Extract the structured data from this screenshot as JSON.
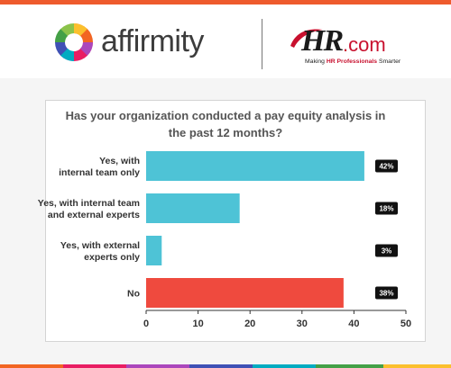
{
  "header": {
    "affirmity_brand": "affirmity",
    "hr_brand": "HR",
    "hr_domain": ".com",
    "hr_tagline_start": "Making ",
    "hr_tagline_highlight": "HR Professionals",
    "hr_tagline_end": " Smarter"
  },
  "colors": {
    "top_bar": "#ee5b2d",
    "bar_primary": "#4ec3d6",
    "bar_highlight": "#ef4a3e",
    "value_badge": "#111111"
  },
  "chart_data": {
    "type": "bar",
    "orientation": "horizontal",
    "title_lines": [
      "Has your organization conducted a pay equity analysis in",
      "the past 12 months?"
    ],
    "categories": [
      [
        "Yes, with",
        "internal team only"
      ],
      [
        "Yes, with internal team",
        "and external experts"
      ],
      [
        "Yes, with external",
        "experts only"
      ],
      [
        "No"
      ]
    ],
    "values": [
      42,
      18,
      3,
      38
    ],
    "value_labels": [
      "42%",
      "18%",
      "3%",
      "38%"
    ],
    "highlight_index": 3,
    "xlim": [
      0,
      50
    ],
    "xticks": [
      "0",
      "10",
      "20",
      "30",
      "40",
      "50"
    ],
    "grid": false
  }
}
